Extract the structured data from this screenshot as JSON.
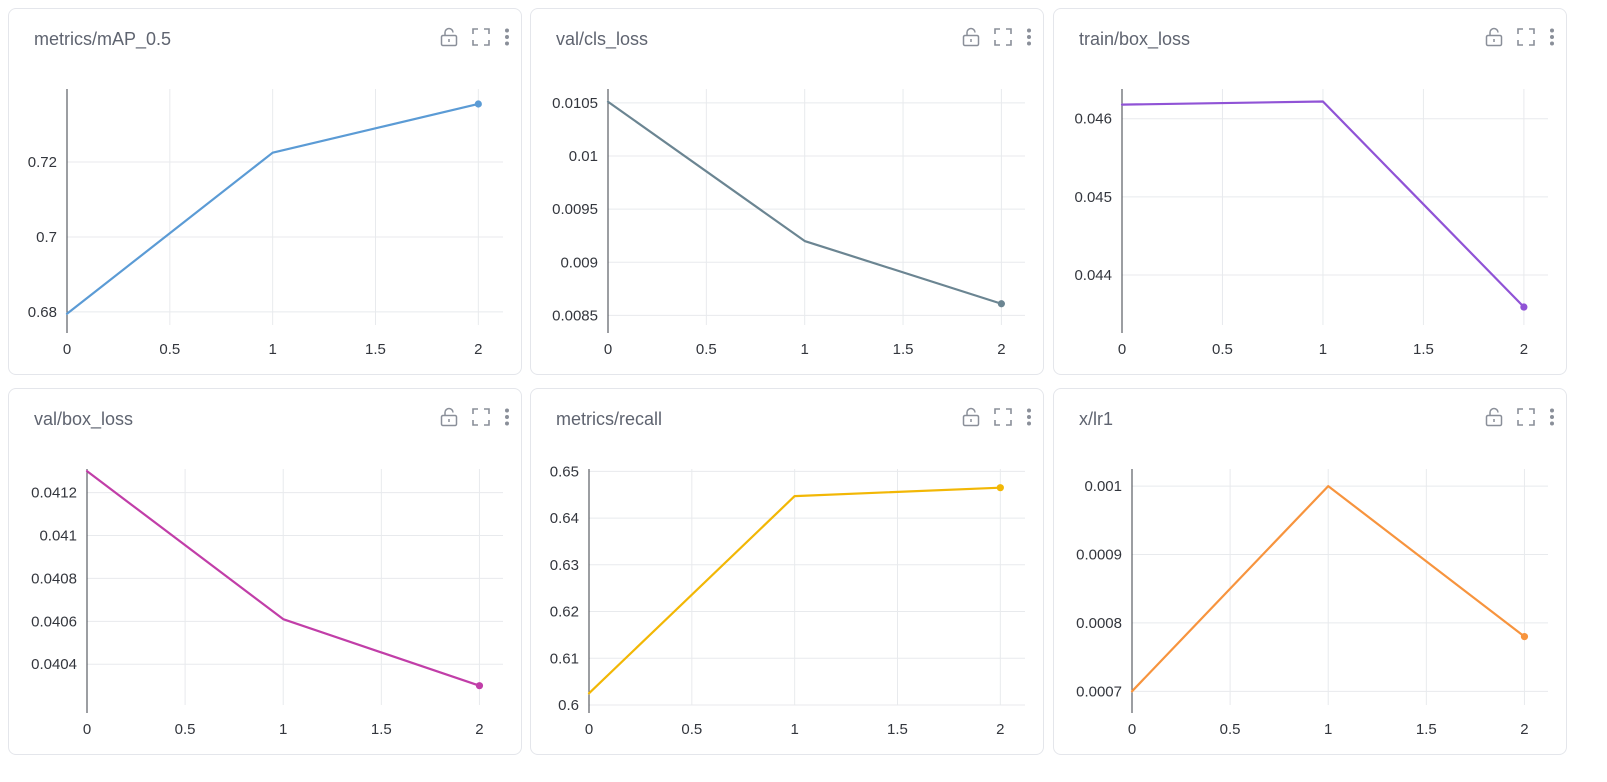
{
  "panels": [
    {
      "title": "metrics/mAP_0.5",
      "actions": [
        "lock-icon",
        "expand-icon",
        "more-vert-icon"
      ],
      "color": "#5b9bd5"
    },
    {
      "title": "val/cls_loss",
      "actions": [
        "lock-icon",
        "expand-icon",
        "more-vert-icon"
      ],
      "color": "#6b8592"
    },
    {
      "title": "train/box_loss",
      "actions": [
        "lock-icon",
        "expand-icon",
        "more-vert-icon"
      ],
      "color": "#9053d6"
    },
    {
      "title": "val/box_loss",
      "actions": [
        "lock-icon",
        "expand-icon",
        "more-vert-icon"
      ],
      "color": "#c13ea8"
    },
    {
      "title": "metrics/recall",
      "actions": [
        "lock-icon",
        "expand-icon",
        "more-vert-icon"
      ],
      "color": "#f2b705"
    },
    {
      "title": "x/lr1",
      "actions": [
        "lock-icon",
        "expand-icon",
        "more-vert-icon"
      ],
      "color": "#f7943e"
    }
  ],
  "chart_data": [
    {
      "type": "line",
      "title": "metrics/mAP_0.5",
      "x": [
        0,
        1,
        2
      ],
      "y": [
        0.6795,
        0.7225,
        0.7355
      ],
      "xlim": [
        0,
        2.12
      ],
      "ylim": [
        0.6765,
        0.7395
      ],
      "xticks": [
        "0",
        "0.5",
        "1",
        "1.5",
        "2"
      ],
      "xtick_values": [
        0,
        0.5,
        1,
        1.5,
        2
      ],
      "yticks": [
        "0.68",
        "0.7",
        "0.72"
      ],
      "ytick_values": [
        0.68,
        0.7,
        0.72
      ],
      "grid": true,
      "color": "#5b9bd5"
    },
    {
      "type": "line",
      "title": "val/cls_loss",
      "x": [
        0,
        1,
        2
      ],
      "y": [
        0.01051,
        0.0092,
        0.00861
      ],
      "xlim": [
        0,
        2.12
      ],
      "ylim": [
        0.00841,
        0.01063
      ],
      "xticks": [
        "0",
        "0.5",
        "1",
        "1.5",
        "2"
      ],
      "xtick_values": [
        0,
        0.5,
        1,
        1.5,
        2
      ],
      "yticks": [
        "0.0085",
        "0.009",
        "0.0095",
        "0.01",
        "0.0105"
      ],
      "ytick_values": [
        0.0085,
        0.009,
        0.0095,
        0.01,
        0.0105
      ],
      "grid": true,
      "color": "#6b8592"
    },
    {
      "type": "line",
      "title": "train/box_loss",
      "x": [
        0,
        1,
        2
      ],
      "y": [
        0.04618,
        0.04622,
        0.04359
      ],
      "xlim": [
        0,
        2.12
      ],
      "ylim": [
        0.04336,
        0.04638
      ],
      "xticks": [
        "0",
        "0.5",
        "1",
        "1.5",
        "2"
      ],
      "xtick_values": [
        0,
        0.5,
        1,
        1.5,
        2
      ],
      "yticks": [
        "0.044",
        "0.045",
        "0.046"
      ],
      "ytick_values": [
        0.044,
        0.045,
        0.046
      ],
      "grid": true,
      "color": "#9053d6"
    },
    {
      "type": "line",
      "title": "val/box_loss",
      "x": [
        0,
        1,
        2
      ],
      "y": [
        0.0413,
        0.04061,
        0.0403
      ],
      "xlim": [
        0,
        2.12
      ],
      "ylim": [
        0.04021,
        0.04131
      ],
      "xticks": [
        "0",
        "0.5",
        "1",
        "1.5",
        "2"
      ],
      "xtick_values": [
        0,
        0.5,
        1,
        1.5,
        2
      ],
      "yticks": [
        "0.0404",
        "0.0406",
        "0.0408",
        "0.041",
        "0.0412"
      ],
      "ytick_values": [
        0.0404,
        0.0406,
        0.0408,
        0.041,
        0.0412
      ],
      "grid": true,
      "color": "#c13ea8"
    },
    {
      "type": "line",
      "title": "metrics/recall",
      "x": [
        0,
        1,
        2
      ],
      "y": [
        0.6025,
        0.6447,
        0.6465
      ],
      "xlim": [
        0,
        2.12
      ],
      "ylim": [
        0.6,
        0.6505
      ],
      "xticks": [
        "0",
        "0.5",
        "1",
        "1.5",
        "2"
      ],
      "xtick_values": [
        0,
        0.5,
        1,
        1.5,
        2
      ],
      "yticks": [
        "0.6",
        "0.61",
        "0.62",
        "0.63",
        "0.64",
        "0.65"
      ],
      "ytick_values": [
        0.6,
        0.61,
        0.62,
        0.63,
        0.64,
        0.65
      ],
      "grid": true,
      "color": "#f2b705"
    },
    {
      "type": "line",
      "title": "x/lr1",
      "x": [
        0,
        1,
        2
      ],
      "y": [
        0.0007,
        0.001,
        0.00078
      ],
      "xlim": [
        0,
        2.12
      ],
      "ylim": [
        0.00068,
        0.001025
      ],
      "xticks": [
        "0",
        "0.5",
        "1",
        "1.5",
        "2"
      ],
      "xtick_values": [
        0,
        0.5,
        1,
        1.5,
        2
      ],
      "yticks": [
        "0.0007",
        "0.0008",
        "0.0009",
        "0.001"
      ],
      "ytick_values": [
        0.0007,
        0.0008,
        0.0009,
        0.001
      ],
      "grid": true,
      "color": "#f7943e"
    }
  ]
}
